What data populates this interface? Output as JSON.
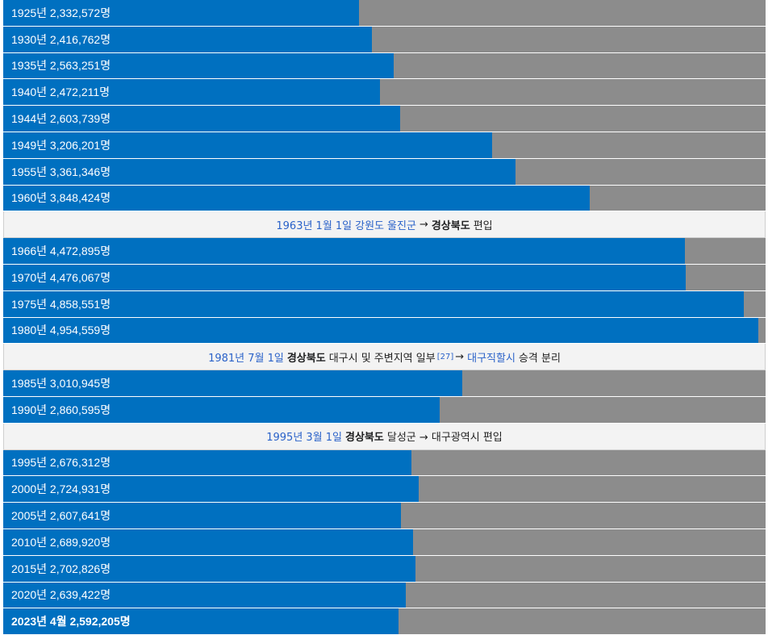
{
  "chart_data": {
    "type": "bar",
    "orientation": "horizontal",
    "unit": "명",
    "xlim": [
      0,
      5000000
    ],
    "colors": {
      "bar": "#0070c0",
      "track": "#8c8c8c",
      "note_bg": "#f3f3f3",
      "link": "#2a62c9"
    },
    "rows": [
      {
        "kind": "bar",
        "label": "1925년 2,332,572명",
        "value": 2332572
      },
      {
        "kind": "bar",
        "label": "1930년 2,416,762명",
        "value": 2416762
      },
      {
        "kind": "bar",
        "label": "1935년 2,563,251명",
        "value": 2563251
      },
      {
        "kind": "bar",
        "label": "1940년 2,472,211명",
        "value": 2472211
      },
      {
        "kind": "bar",
        "label": "1944년 2,603,739명",
        "value": 2603739
      },
      {
        "kind": "bar",
        "label": "1949년 3,206,201명",
        "value": 3206201
      },
      {
        "kind": "bar",
        "label": "1955년 3,361,346명",
        "value": 3361346
      },
      {
        "kind": "bar",
        "label": "1960년 3,848,424명",
        "value": 3848424
      },
      {
        "kind": "note",
        "parts": [
          {
            "text": "1963년 1월 1일",
            "style": "link"
          },
          {
            "text": "강원도",
            "style": "link"
          },
          {
            "text": "울진군",
            "style": "link"
          },
          {
            "text": "→",
            "style": "plain"
          },
          {
            "text": "경상북도",
            "style": "strong"
          },
          {
            "text": "편입",
            "style": "plain"
          }
        ]
      },
      {
        "kind": "bar",
        "label": "1966년 4,472,895명",
        "value": 4472895
      },
      {
        "kind": "bar",
        "label": "1970년 4,476,067명",
        "value": 4476067
      },
      {
        "kind": "bar",
        "label": "1975년 4,858,551명",
        "value": 4858551
      },
      {
        "kind": "bar",
        "label": "1980년 4,954,559명",
        "value": 4954559
      },
      {
        "kind": "note",
        "parts": [
          {
            "text": "1981년 7월 1일",
            "style": "link"
          },
          {
            "text": "경상북도",
            "style": "strong"
          },
          {
            "text": "대구시 및 주변지역 일부",
            "style": "plain"
          },
          {
            "text": "[27]",
            "style": "sup"
          },
          {
            "text": "→",
            "style": "plain"
          },
          {
            "text": "대구직할시",
            "style": "link"
          },
          {
            "text": "승격 분리",
            "style": "plain"
          }
        ]
      },
      {
        "kind": "bar",
        "label": "1985년 3,010,945명",
        "value": 3010945
      },
      {
        "kind": "bar",
        "label": "1990년 2,860,595명",
        "value": 2860595
      },
      {
        "kind": "note",
        "parts": [
          {
            "text": "1995년 3월 1일",
            "style": "link"
          },
          {
            "text": "경상북도",
            "style": "strong"
          },
          {
            "text": "달성군 → 대구광역시 편입",
            "style": "plain"
          }
        ]
      },
      {
        "kind": "bar",
        "label": "1995년 2,676,312명",
        "value": 2676312
      },
      {
        "kind": "bar",
        "label": "2000년 2,724,931명",
        "value": 2724931
      },
      {
        "kind": "bar",
        "label": "2005년 2,607,641명",
        "value": 2607641
      },
      {
        "kind": "bar",
        "label": "2010년 2,689,920명",
        "value": 2689920
      },
      {
        "kind": "bar",
        "label": "2015년 2,702,826명",
        "value": 2702826
      },
      {
        "kind": "bar",
        "label": "2020년 2,639,422명",
        "value": 2639422
      },
      {
        "kind": "bar",
        "label": "2023년 4월 2,592,205명",
        "value": 2592205,
        "bold": true
      }
    ]
  }
}
